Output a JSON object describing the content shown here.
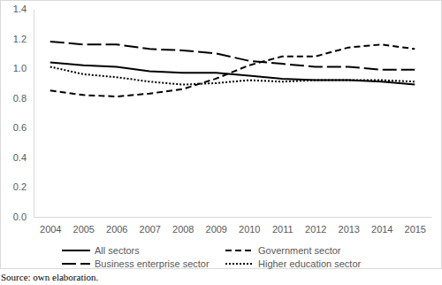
{
  "chart_data": {
    "type": "line",
    "categories": [
      "2004",
      "2005",
      "2006",
      "2007",
      "2008",
      "2009",
      "2010",
      "2011",
      "2012",
      "2013",
      "2014",
      "2015"
    ],
    "series": [
      {
        "name": "All sectors",
        "color": "#000000",
        "line_style": "solid",
        "values": [
          1.04,
          1.02,
          1.01,
          0.98,
          0.97,
          0.97,
          0.95,
          0.93,
          0.92,
          0.92,
          0.91,
          0.89
        ]
      },
      {
        "name": "Government sector",
        "color": "#000000",
        "line_style": "dashed",
        "values": [
          0.85,
          0.82,
          0.81,
          0.83,
          0.86,
          0.93,
          1.02,
          1.08,
          1.08,
          1.14,
          1.16,
          1.13
        ]
      },
      {
        "name": "Business enterprise sector",
        "color": "#000000",
        "line_style": "longdash",
        "values": [
          1.18,
          1.16,
          1.16,
          1.13,
          1.12,
          1.1,
          1.05,
          1.03,
          1.01,
          1.01,
          0.99,
          0.99
        ]
      },
      {
        "name": "Higher education sector",
        "color": "#000000",
        "line_style": "dotted",
        "values": [
          1.01,
          0.96,
          0.94,
          0.91,
          0.89,
          0.9,
          0.92,
          0.91,
          0.92,
          0.92,
          0.92,
          0.91
        ]
      }
    ],
    "ylim": [
      0,
      1.4
    ],
    "yticks": [
      {
        "value": 0,
        "label": "0.0"
      },
      0.2,
      0.4,
      0.6,
      0.8,
      {
        "value": 1,
        "label": "1.0"
      },
      1.2,
      1.4
    ],
    "grid": false,
    "legend": "bottom",
    "source": "Source: own elaboration."
  }
}
